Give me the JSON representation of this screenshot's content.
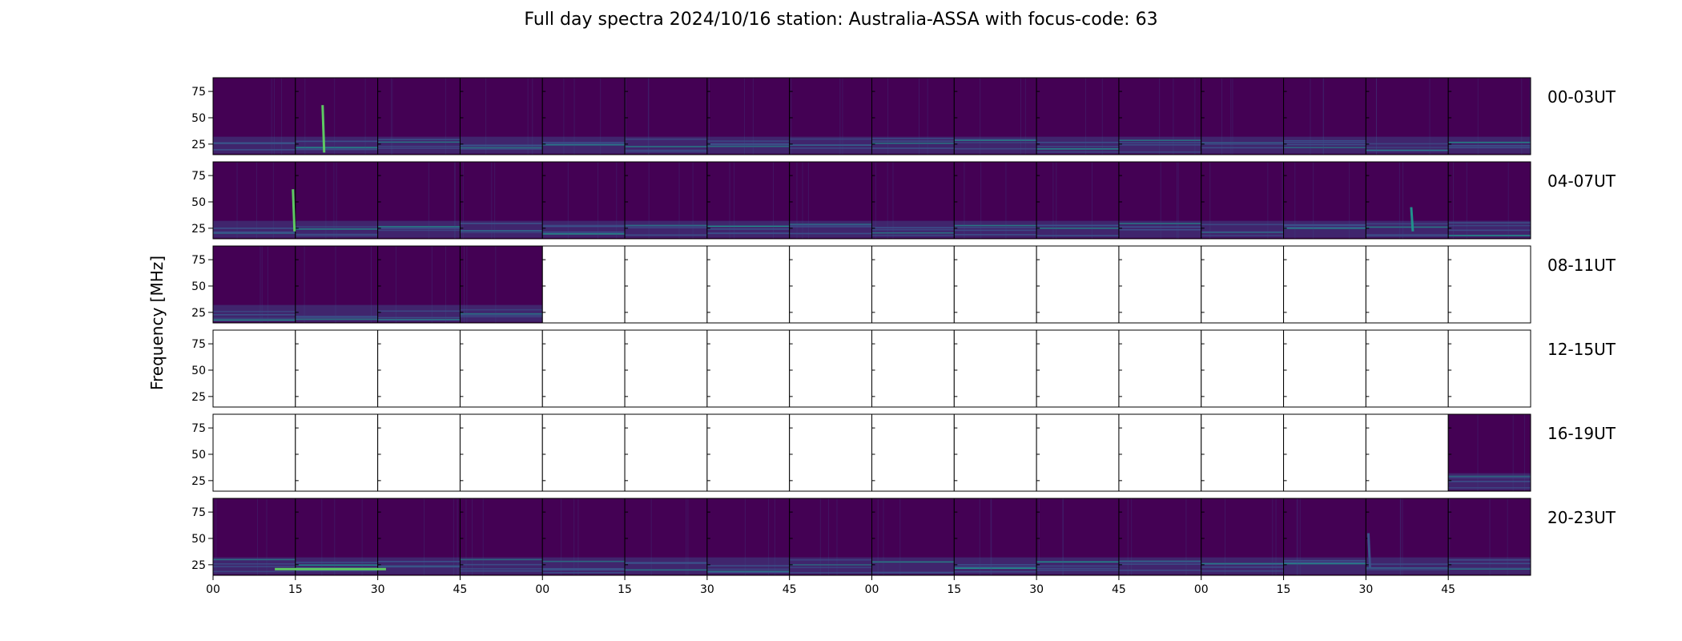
{
  "chart_data": {
    "type": "heatmap",
    "title": "Full day spectra 2024/10/16 station: Australia-ASSA with focus-code: 63",
    "ylabel": "Frequency [MHz]",
    "xlabel": "",
    "ylim": [
      15,
      88
    ],
    "yticks": [
      25,
      50,
      75
    ],
    "xticks": [
      "00",
      "15",
      "30",
      "45",
      "00",
      "15",
      "30",
      "45",
      "00",
      "15",
      "30",
      "45",
      "00",
      "15",
      "30",
      "45"
    ],
    "colormap": "viridis",
    "colors": {
      "background": "#440154",
      "mid": "#3b528b",
      "high": "#21918c",
      "peak": "#5ec962",
      "max": "#fde725"
    },
    "rows": [
      {
        "label": "00-03UT",
        "data_panels": [
          true,
          true,
          true,
          true,
          true,
          true,
          true,
          true,
          true,
          true,
          true,
          true,
          true,
          true,
          true,
          true
        ]
      },
      {
        "label": "04-07UT",
        "data_panels": [
          true,
          true,
          true,
          true,
          true,
          true,
          true,
          true,
          true,
          true,
          true,
          true,
          true,
          true,
          true,
          true
        ]
      },
      {
        "label": "08-11UT",
        "data_panels": [
          true,
          true,
          true,
          true,
          false,
          false,
          false,
          false,
          false,
          false,
          false,
          false,
          false,
          false,
          false,
          false
        ]
      },
      {
        "label": "12-15UT",
        "data_panels": [
          false,
          false,
          false,
          false,
          false,
          false,
          false,
          false,
          false,
          false,
          false,
          false,
          false,
          false,
          false,
          false
        ]
      },
      {
        "label": "16-19UT",
        "data_panels": [
          false,
          false,
          false,
          false,
          false,
          false,
          false,
          false,
          false,
          false,
          false,
          false,
          false,
          false,
          false,
          true
        ]
      },
      {
        "label": "20-23UT",
        "data_panels": [
          true,
          true,
          true,
          true,
          true,
          true,
          true,
          true,
          true,
          true,
          true,
          true,
          true,
          true,
          true,
          true
        ]
      }
    ]
  }
}
